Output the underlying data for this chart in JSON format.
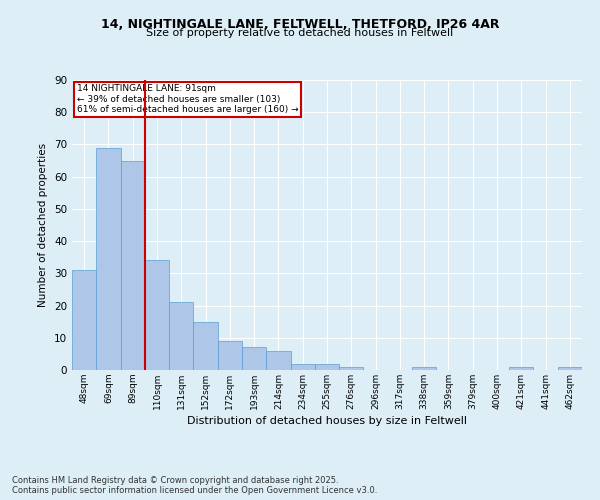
{
  "title1": "14, NIGHTINGALE LANE, FELTWELL, THETFORD, IP26 4AR",
  "title2": "Size of property relative to detached houses in Feltwell",
  "xlabel": "Distribution of detached houses by size in Feltwell",
  "ylabel": "Number of detached properties",
  "categories": [
    "48sqm",
    "69sqm",
    "89sqm",
    "110sqm",
    "131sqm",
    "152sqm",
    "172sqm",
    "193sqm",
    "214sqm",
    "234sqm",
    "255sqm",
    "276sqm",
    "296sqm",
    "317sqm",
    "338sqm",
    "359sqm",
    "379sqm",
    "400sqm",
    "421sqm",
    "441sqm",
    "462sqm"
  ],
  "values": [
    31,
    69,
    65,
    34,
    21,
    15,
    9,
    7,
    6,
    2,
    2,
    1,
    0,
    0,
    1,
    0,
    0,
    0,
    1,
    0,
    1
  ],
  "bar_color": "#aec6e8",
  "bar_edge_color": "#5a9fd4",
  "vline_x_index": 2,
  "vline_color": "#cc0000",
  "annotation_text": "14 NIGHTINGALE LANE: 91sqm\n← 39% of detached houses are smaller (103)\n61% of semi-detached houses are larger (160) →",
  "annotation_box_color": "#cc0000",
  "ylim": [
    0,
    90
  ],
  "yticks": [
    0,
    10,
    20,
    30,
    40,
    50,
    60,
    70,
    80,
    90
  ],
  "footer_text": "Contains HM Land Registry data © Crown copyright and database right 2025.\nContains public sector information licensed under the Open Government Licence v3.0.",
  "background_color": "#ddeef7",
  "plot_bg_color": "#ddeef7"
}
